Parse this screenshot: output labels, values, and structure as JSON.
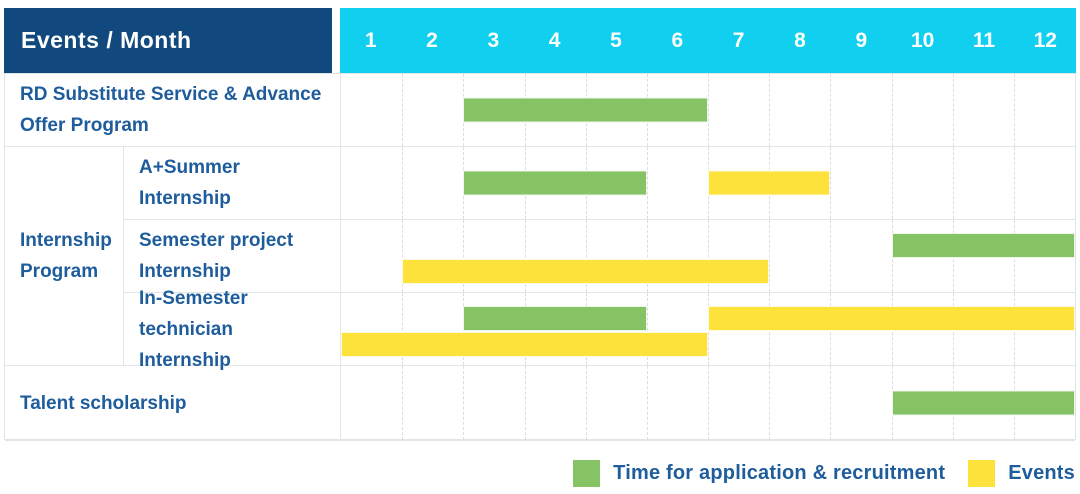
{
  "header": {
    "title": "Events / Month",
    "months": [
      "1",
      "2",
      "3",
      "4",
      "5",
      "6",
      "7",
      "8",
      "9",
      "10",
      "11",
      "12"
    ]
  },
  "colors": {
    "navy": "#11497F",
    "cyan": "#10CFEF",
    "green": "#85C364",
    "yellow": "#FDE23B",
    "label_blue": "#1E5C9C"
  },
  "legend": {
    "items": [
      {
        "key": "recruitment",
        "label": "Time for application & recruitment",
        "color": "#85C364"
      },
      {
        "key": "event",
        "label": "Events",
        "color": "#FDE23B"
      }
    ]
  },
  "chart_data": {
    "type": "gantt",
    "title": "Events / Month",
    "x_unit": "month",
    "x_range": [
      1,
      12
    ],
    "legend": {
      "recruitment": "Time for application & recruitment",
      "event": "Events"
    },
    "rows": [
      {
        "group": null,
        "label": "RD Substitute Service & Advance Offer Program",
        "lanes": [
          [
            {
              "type": "recruitment",
              "start": 3,
              "end": 6
            }
          ]
        ]
      },
      {
        "group": "Internship Program",
        "label": "A+Summer Internship",
        "lanes": [
          [
            {
              "type": "recruitment",
              "start": 3,
              "end": 5
            },
            {
              "type": "event",
              "start": 7,
              "end": 8
            }
          ]
        ]
      },
      {
        "group": "Internship Program",
        "label": "Semester project Internship",
        "lanes": [
          [
            {
              "type": "recruitment",
              "start": 10,
              "end": 12
            }
          ],
          [
            {
              "type": "event",
              "start": 2,
              "end": 7
            }
          ]
        ]
      },
      {
        "group": "Internship Program",
        "label": "In-Semester technician Internship",
        "lanes": [
          [
            {
              "type": "recruitment",
              "start": 3,
              "end": 5
            },
            {
              "type": "event",
              "start": 7,
              "end": 12
            }
          ],
          [
            {
              "type": "event",
              "start": 1,
              "end": 6
            }
          ]
        ]
      },
      {
        "group": null,
        "label": "Talent scholarship",
        "lanes": [
          [
            {
              "type": "recruitment",
              "start": 10,
              "end": 12
            }
          ]
        ]
      }
    ]
  }
}
